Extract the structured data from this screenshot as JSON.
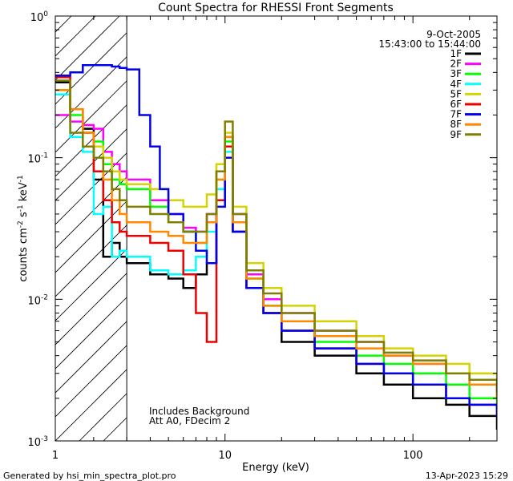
{
  "chart_data": {
    "type": "line",
    "title": "Count Spectra for RHESSI Front Segments",
    "xlabel": "Energy (keV)",
    "ylabel_main": "counts cm",
    "ylabel_exp1": "-2",
    "ylabel_s": " s",
    "ylabel_exp2": "-1",
    "ylabel_kev": " keV",
    "ylabel_exp3": "-1",
    "xscale": "log",
    "yscale": "log",
    "xlim": [
      1.25,
      280
    ],
    "ylim": [
      0.001,
      1.0
    ],
    "x_ticks": [
      {
        "value": 1,
        "label": "1"
      },
      {
        "value": 10,
        "label": "10"
      },
      {
        "value": 100,
        "label": "100"
      }
    ],
    "y_ticks": [
      {
        "value": 1,
        "base": "10",
        "exp": "0"
      },
      {
        "value": 0.1,
        "base": "10",
        "exp": "-1"
      },
      {
        "value": 0.01,
        "base": "10",
        "exp": "-2"
      },
      {
        "value": 0.001,
        "base": "10",
        "exp": "-3"
      }
    ],
    "date": "9-Oct-2005",
    "time_range": "15:43:00 to 15:44:00",
    "annotation_line1": "Includes Background",
    "annotation_line2": "Att A0, FDecim 2",
    "attenuator_edge_kev": 3,
    "series": [
      {
        "name": "1F",
        "color": "#000000",
        "points": [
          [
            1.25,
            0.34
          ],
          [
            1.5,
            0.22
          ],
          [
            1.75,
            0.16
          ],
          [
            2,
            0.07
          ],
          [
            2.25,
            0.02
          ],
          [
            2.5,
            0.025
          ],
          [
            2.75,
            0.02
          ],
          [
            3,
            0.018
          ],
          [
            4,
            0.015
          ],
          [
            5,
            0.014
          ],
          [
            6,
            0.012
          ],
          [
            7,
            0.015
          ],
          [
            8,
            0.018
          ],
          [
            9,
            0.05
          ],
          [
            10,
            0.12
          ],
          [
            11,
            0.03
          ],
          [
            13,
            0.012
          ],
          [
            16,
            0.008
          ],
          [
            20,
            0.005
          ],
          [
            30,
            0.004
          ],
          [
            50,
            0.003
          ],
          [
            70,
            0.0025
          ],
          [
            100,
            0.002
          ],
          [
            150,
            0.0018
          ],
          [
            200,
            0.0015
          ],
          [
            280,
            0.0012
          ]
        ]
      },
      {
        "name": "2F",
        "color": "#ff00ff",
        "points": [
          [
            1.25,
            0.2
          ],
          [
            1.5,
            0.18
          ],
          [
            1.75,
            0.17
          ],
          [
            2,
            0.16
          ],
          [
            2.25,
            0.11
          ],
          [
            2.5,
            0.09
          ],
          [
            2.75,
            0.08
          ],
          [
            3,
            0.07
          ],
          [
            4,
            0.05
          ],
          [
            5,
            0.04
          ],
          [
            6,
            0.032
          ],
          [
            7,
            0.03
          ],
          [
            8,
            0.04
          ],
          [
            9,
            0.08
          ],
          [
            10,
            0.14
          ],
          [
            11,
            0.04
          ],
          [
            13,
            0.015
          ],
          [
            16,
            0.01
          ],
          [
            20,
            0.008
          ],
          [
            30,
            0.006
          ],
          [
            50,
            0.005
          ],
          [
            70,
            0.004
          ],
          [
            100,
            0.0035
          ],
          [
            150,
            0.003
          ],
          [
            200,
            0.0025
          ],
          [
            280,
            0.002
          ]
        ]
      },
      {
        "name": "3F",
        "color": "#00ff00",
        "points": [
          [
            1.25,
            0.3
          ],
          [
            1.5,
            0.2
          ],
          [
            1.75,
            0.15
          ],
          [
            2,
            0.13
          ],
          [
            2.25,
            0.09
          ],
          [
            2.5,
            0.07
          ],
          [
            2.75,
            0.065
          ],
          [
            3,
            0.06
          ],
          [
            4,
            0.045
          ],
          [
            5,
            0.035
          ],
          [
            6,
            0.03
          ],
          [
            7,
            0.025
          ],
          [
            8,
            0.035
          ],
          [
            9,
            0.07
          ],
          [
            10,
            0.13
          ],
          [
            11,
            0.035
          ],
          [
            13,
            0.014
          ],
          [
            16,
            0.009
          ],
          [
            20,
            0.007
          ],
          [
            30,
            0.005
          ],
          [
            50,
            0.004
          ],
          [
            70,
            0.0035
          ],
          [
            100,
            0.003
          ],
          [
            150,
            0.0025
          ],
          [
            200,
            0.002
          ],
          [
            280,
            0.0017
          ]
        ]
      },
      {
        "name": "4F",
        "color": "#00ffff",
        "points": [
          [
            1.25,
            0.28
          ],
          [
            1.5,
            0.14
          ],
          [
            1.75,
            0.11
          ],
          [
            2,
            0.04
          ],
          [
            2.25,
            0.045
          ],
          [
            2.5,
            0.02
          ],
          [
            2.75,
            0.022
          ],
          [
            3,
            0.02
          ],
          [
            4,
            0.016
          ],
          [
            5,
            0.015
          ],
          [
            6,
            0.016
          ],
          [
            7,
            0.02
          ],
          [
            8,
            0.03
          ],
          [
            9,
            0.06
          ],
          [
            10,
            0.11
          ],
          [
            11,
            0.03
          ],
          [
            13,
            0.012
          ],
          [
            16,
            0.008
          ],
          [
            20,
            0.006
          ],
          [
            30,
            0.0045
          ],
          [
            50,
            0.0035
          ],
          [
            70,
            0.003
          ],
          [
            100,
            0.0025
          ],
          [
            150,
            0.002
          ],
          [
            200,
            0.0018
          ],
          [
            280,
            0.0015
          ]
        ]
      },
      {
        "name": "5F",
        "color": "#d4d400",
        "points": [
          [
            1.25,
            0.3
          ],
          [
            1.5,
            0.22
          ],
          [
            1.75,
            0.15
          ],
          [
            2,
            0.12
          ],
          [
            2.25,
            0.1
          ],
          [
            2.5,
            0.08
          ],
          [
            2.75,
            0.07
          ],
          [
            3,
            0.065
          ],
          [
            4,
            0.06
          ],
          [
            5,
            0.05
          ],
          [
            6,
            0.045
          ],
          [
            7,
            0.045
          ],
          [
            8,
            0.055
          ],
          [
            9,
            0.09
          ],
          [
            10,
            0.15
          ],
          [
            11,
            0.045
          ],
          [
            13,
            0.018
          ],
          [
            16,
            0.012
          ],
          [
            20,
            0.009
          ],
          [
            30,
            0.007
          ],
          [
            50,
            0.0055
          ],
          [
            70,
            0.0045
          ],
          [
            100,
            0.004
          ],
          [
            150,
            0.0035
          ],
          [
            200,
            0.003
          ],
          [
            280,
            0.0025
          ]
        ]
      },
      {
        "name": "6F",
        "color": "#ee0000",
        "points": [
          [
            1.25,
            0.37
          ],
          [
            1.5,
            0.22
          ],
          [
            1.75,
            0.15
          ],
          [
            2,
            0.08
          ],
          [
            2.25,
            0.05
          ],
          [
            2.5,
            0.035
          ],
          [
            2.75,
            0.03
          ],
          [
            3,
            0.028
          ],
          [
            4,
            0.025
          ],
          [
            5,
            0.022
          ],
          [
            6,
            0.015
          ],
          [
            7,
            0.008
          ],
          [
            8,
            0.005
          ],
          [
            9,
            0.05
          ],
          [
            10,
            0.12
          ],
          [
            11,
            0.03
          ],
          [
            13,
            0.012
          ],
          [
            16,
            0.008
          ],
          [
            20,
            0.006
          ],
          [
            30,
            0.0045
          ],
          [
            50,
            0.0035
          ],
          [
            70,
            0.003
          ],
          [
            100,
            0.0025
          ],
          [
            150,
            0.002
          ],
          [
            200,
            0.0018
          ],
          [
            280,
            0.0015
          ]
        ]
      },
      {
        "name": "7F",
        "color": "#0000ee",
        "points": [
          [
            1.25,
            0.38
          ],
          [
            1.5,
            0.4
          ],
          [
            1.75,
            0.45
          ],
          [
            2,
            0.45
          ],
          [
            2.25,
            0.45
          ],
          [
            2.5,
            0.44
          ],
          [
            2.75,
            0.43
          ],
          [
            3,
            0.42
          ],
          [
            3.5,
            0.2
          ],
          [
            4,
            0.12
          ],
          [
            4.5,
            0.06
          ],
          [
            5,
            0.04
          ],
          [
            6,
            0.03
          ],
          [
            7,
            0.022
          ],
          [
            8,
            0.018
          ],
          [
            9,
            0.045
          ],
          [
            10,
            0.1
          ],
          [
            11,
            0.03
          ],
          [
            13,
            0.012
          ],
          [
            16,
            0.008
          ],
          [
            20,
            0.006
          ],
          [
            30,
            0.0045
          ],
          [
            50,
            0.0035
          ],
          [
            70,
            0.003
          ],
          [
            100,
            0.0025
          ],
          [
            150,
            0.002
          ],
          [
            200,
            0.0018
          ],
          [
            280,
            0.0015
          ]
        ]
      },
      {
        "name": "8F",
        "color": "#ff8800",
        "points": [
          [
            1.25,
            0.3
          ],
          [
            1.5,
            0.22
          ],
          [
            1.75,
            0.15
          ],
          [
            2,
            0.1
          ],
          [
            2.25,
            0.07
          ],
          [
            2.5,
            0.05
          ],
          [
            2.75,
            0.04
          ],
          [
            3,
            0.035
          ],
          [
            4,
            0.03
          ],
          [
            5,
            0.028
          ],
          [
            6,
            0.025
          ],
          [
            7,
            0.025
          ],
          [
            8,
            0.035
          ],
          [
            9,
            0.07
          ],
          [
            10,
            0.14
          ],
          [
            11,
            0.035
          ],
          [
            13,
            0.014
          ],
          [
            16,
            0.009
          ],
          [
            20,
            0.007
          ],
          [
            30,
            0.0055
          ],
          [
            50,
            0.0045
          ],
          [
            70,
            0.004
          ],
          [
            100,
            0.0035
          ],
          [
            150,
            0.003
          ],
          [
            200,
            0.0025
          ],
          [
            280,
            0.002
          ]
        ]
      },
      {
        "name": "9F",
        "color": "#808000",
        "points": [
          [
            1.25,
            0.35
          ],
          [
            1.5,
            0.15
          ],
          [
            1.75,
            0.12
          ],
          [
            2,
            0.1
          ],
          [
            2.25,
            0.08
          ],
          [
            2.5,
            0.06
          ],
          [
            2.75,
            0.05
          ],
          [
            3,
            0.045
          ],
          [
            4,
            0.04
          ],
          [
            5,
            0.035
          ],
          [
            6,
            0.03
          ],
          [
            7,
            0.03
          ],
          [
            8,
            0.04
          ],
          [
            9,
            0.08
          ],
          [
            10,
            0.18
          ],
          [
            11,
            0.04
          ],
          [
            13,
            0.016
          ],
          [
            16,
            0.011
          ],
          [
            20,
            0.008
          ],
          [
            30,
            0.006
          ],
          [
            50,
            0.005
          ],
          [
            70,
            0.0042
          ],
          [
            100,
            0.0037
          ],
          [
            150,
            0.003
          ],
          [
            200,
            0.0027
          ],
          [
            280,
            0.0022
          ]
        ]
      }
    ]
  },
  "footer": {
    "left": "Generated by hsi_min_spectra_plot.pro",
    "right": "13-Apr-2023 15:29"
  }
}
